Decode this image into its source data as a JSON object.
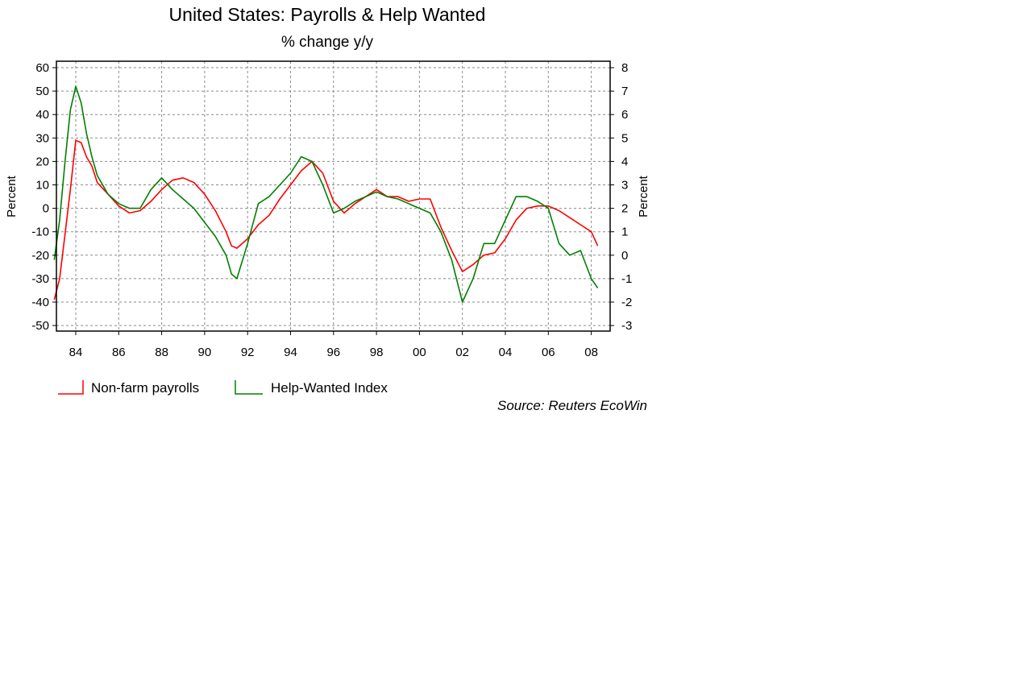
{
  "chart_data": {
    "type": "line",
    "title": "United States:  Payrolls & Help Wanted",
    "subtitle": "% change y/y",
    "ylabel_left": "Percent",
    "ylabel_right": "Percent",
    "source": "Source: Reuters EcoWin",
    "grid": true,
    "legend_position": "bottom-left",
    "x_ticks": [
      "84",
      "86",
      "88",
      "90",
      "92",
      "94",
      "96",
      "98",
      "00",
      "02",
      "04",
      "06",
      "08"
    ],
    "y_left": {
      "ticks": [
        "60",
        "50",
        "40",
        "30",
        "20",
        "10",
        "0",
        "-10",
        "-20",
        "-30",
        "-40",
        "-50"
      ],
      "range": [
        -52.5,
        61.0
      ]
    },
    "y_right": {
      "ticks": [
        "8",
        "7",
        "6",
        "5",
        "4",
        "3",
        "2",
        "1",
        "0",
        "-1",
        "-2",
        "-3"
      ],
      "range": [
        -3.0,
        8.3
      ]
    },
    "x_range": [
      1983.0,
      2008.7
    ],
    "series": [
      {
        "name": "Non-farm payrolls",
        "axis": "right",
        "color": "#ff0000",
        "x": [
          1983.0,
          1983.25,
          1983.5,
          1983.75,
          1984.0,
          1984.25,
          1984.5,
          1984.75,
          1985.0,
          1985.5,
          1986.0,
          1986.5,
          1987.0,
          1987.5,
          1988.0,
          1988.5,
          1989.0,
          1989.5,
          1990.0,
          1990.5,
          1991.0,
          1991.25,
          1991.5,
          1992.0,
          1992.5,
          1993.0,
          1993.5,
          1994.0,
          1994.5,
          1995.0,
          1995.5,
          1996.0,
          1996.5,
          1997.0,
          1997.5,
          1998.0,
          1998.5,
          1999.0,
          1999.5,
          2000.0,
          2000.5,
          2001.0,
          2001.5,
          2002.0,
          2002.5,
          2003.0,
          2003.5,
          2004.0,
          2004.5,
          2005.0,
          2005.5,
          2006.0,
          2006.5,
          2007.0,
          2007.5,
          2008.0,
          2008.3
        ],
        "y": [
          -1.9,
          -1.0,
          0.9,
          2.8,
          4.9,
          4.8,
          4.2,
          3.8,
          3.1,
          2.6,
          2.1,
          1.8,
          1.9,
          2.3,
          2.8,
          3.2,
          3.3,
          3.1,
          2.6,
          1.9,
          1.0,
          0.4,
          0.3,
          0.7,
          1.3,
          1.7,
          2.4,
          3.0,
          3.6,
          4.0,
          3.5,
          2.3,
          1.8,
          2.2,
          2.5,
          2.8,
          2.5,
          2.5,
          2.3,
          2.4,
          2.4,
          1.2,
          0.2,
          -0.7,
          -0.4,
          0.0,
          0.1,
          0.7,
          1.5,
          2.0,
          2.1,
          2.1,
          1.9,
          1.6,
          1.3,
          1.0,
          0.4
        ]
      },
      {
        "name": "Help-Wanted Index",
        "axis": "left",
        "color": "#008000",
        "x": [
          1983.0,
          1983.25,
          1983.5,
          1983.75,
          1984.0,
          1984.25,
          1984.5,
          1984.75,
          1985.0,
          1985.5,
          1986.0,
          1986.5,
          1987.0,
          1987.5,
          1988.0,
          1988.5,
          1989.0,
          1989.5,
          1990.0,
          1990.5,
          1991.0,
          1991.25,
          1991.5,
          1992.0,
          1992.5,
          1993.0,
          1993.5,
          1994.0,
          1994.5,
          1995.0,
          1995.5,
          1996.0,
          1996.5,
          1997.0,
          1997.5,
          1998.0,
          1998.5,
          1999.0,
          1999.5,
          2000.0,
          2000.5,
          2001.0,
          2001.5,
          2002.0,
          2002.5,
          2003.0,
          2003.5,
          2004.0,
          2004.5,
          2005.0,
          2005.5,
          2006.0,
          2006.5,
          2007.0,
          2007.5,
          2008.0,
          2008.3
        ],
        "y": [
          -22,
          -5,
          20,
          42,
          52,
          45,
          32,
          22,
          14,
          6,
          2,
          0,
          0,
          8,
          13,
          8,
          4,
          0,
          -6,
          -12,
          -20,
          -28,
          -30,
          -15,
          2,
          5,
          10,
          15,
          22,
          20,
          10,
          -2,
          0,
          3,
          5,
          7,
          5,
          4,
          2,
          0,
          -2,
          -10,
          -22,
          -40,
          -30,
          -15,
          -15,
          -5,
          5,
          5,
          3,
          0,
          -15,
          -20,
          -18,
          -30,
          -34
        ]
      }
    ]
  }
}
